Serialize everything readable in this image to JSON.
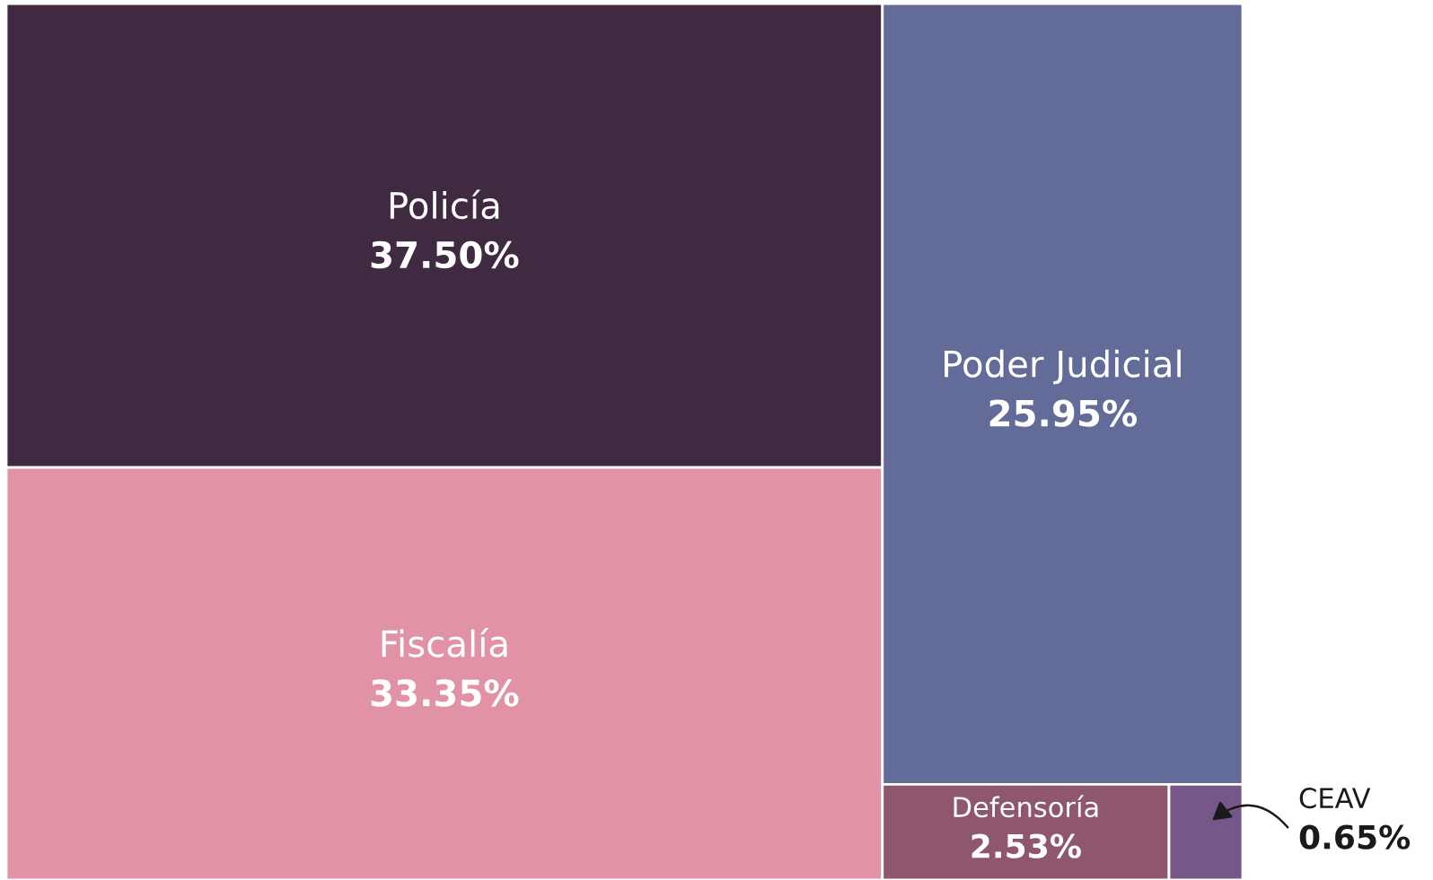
{
  "chart_data": {
    "type": "other",
    "categories": [
      "Policía",
      "Fiscalía",
      "Poder Judicial",
      "Defensoría",
      "CEAV"
    ],
    "values": [
      37.5,
      33.35,
      25.95,
      2.53,
      0.65
    ],
    "value_labels": [
      "37.50%",
      "33.35%",
      "25.95%",
      "2.53%",
      "0.65%"
    ],
    "colors": [
      "#3f2a42",
      "#e192a4",
      "#636b98",
      "#8e566f",
      "#77578a"
    ]
  }
}
